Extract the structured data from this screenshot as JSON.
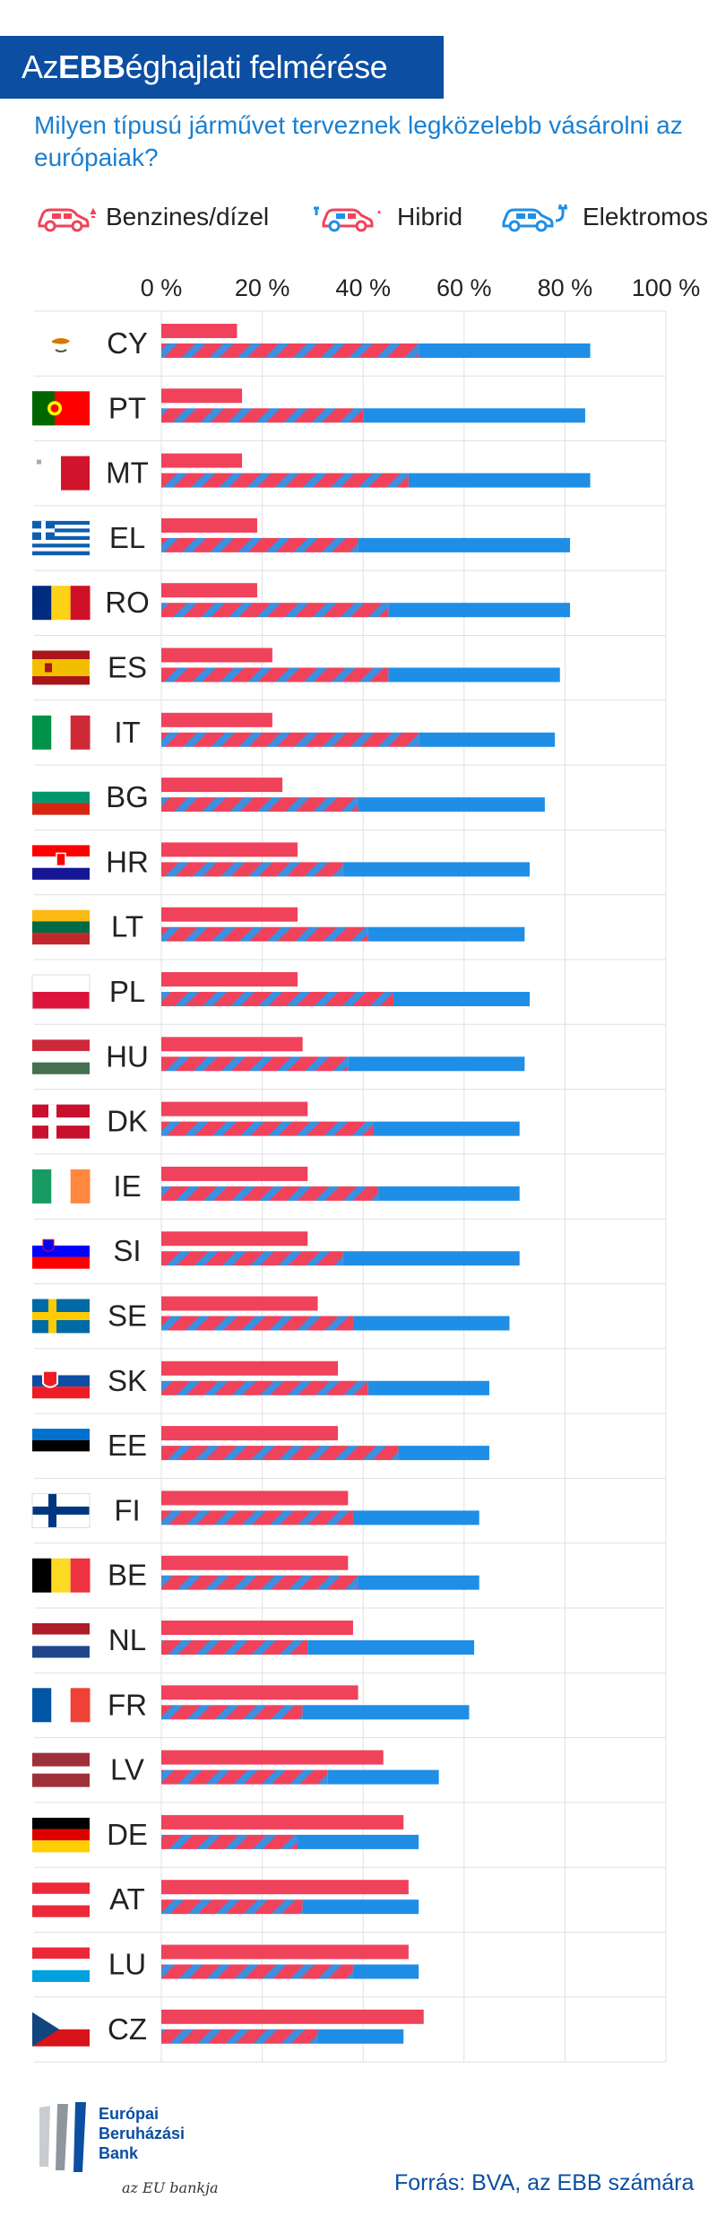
{
  "title": {
    "prefix": "Az ",
    "bold": "EBB",
    "suffix": " éghajlati felmérése"
  },
  "subtitle": "Milyen típusú járművet terveznek legközelebb vásárolni az európaiak?",
  "legend": [
    {
      "label": "Benzines/dízel",
      "icon": "petrol-car-icon",
      "color": "#f0425a"
    },
    {
      "label": "Hibrid",
      "icon": "hybrid-car-icon",
      "color": "#f0425a"
    },
    {
      "label": "Elektromos",
      "icon": "electric-car-icon",
      "color": "#1f8ee6"
    }
  ],
  "colors": {
    "petrol": "#f0425a",
    "hybrid_stripe_red": "#f0425a",
    "hybrid_stripe_blue": "#3d8fe0",
    "electric": "#1f8ee6",
    "grid": "#e0e0e0",
    "title_bg": "#0b4ea2",
    "subtitle": "#1a7fd0"
  },
  "chart_data": {
    "type": "bar",
    "orientation": "horizontal",
    "stacked_second_bar": true,
    "x_ticks": [
      "0 %",
      "20 %",
      "40 %",
      "60 %",
      "80 %",
      "100 %"
    ],
    "xlim": [
      0,
      100
    ],
    "grid": true,
    "categories": [
      "CY",
      "PT",
      "MT",
      "EL",
      "RO",
      "ES",
      "IT",
      "BG",
      "HR",
      "LT",
      "PL",
      "HU",
      "DK",
      "IE",
      "SI",
      "SE",
      "SK",
      "EE",
      "FI",
      "BE",
      "NL",
      "FR",
      "LV",
      "DE",
      "AT",
      "LU",
      "CZ"
    ],
    "flags": [
      "cy",
      "pt",
      "mt",
      "el",
      "ro",
      "es",
      "it",
      "bg",
      "hr",
      "lt",
      "pl",
      "hu",
      "dk",
      "ie",
      "si",
      "se",
      "sk",
      "ee",
      "fi",
      "be",
      "nl",
      "fr",
      "lv",
      "de",
      "at",
      "lu",
      "cz"
    ],
    "series": [
      {
        "name": "Benzines/dízel",
        "values": [
          15,
          16,
          16,
          19,
          19,
          22,
          22,
          24,
          27,
          27,
          27,
          28,
          29,
          29,
          29,
          31,
          35,
          35,
          37,
          37,
          38,
          39,
          44,
          48,
          49,
          49,
          52
        ]
      },
      {
        "name": "Hibrid",
        "values": [
          51,
          40,
          49,
          39,
          45,
          45,
          51,
          39,
          36,
          41,
          46,
          37,
          42,
          43,
          36,
          38,
          41,
          47,
          38,
          39,
          29,
          28,
          33,
          27,
          28,
          38,
          31
        ]
      },
      {
        "name": "Elektromos",
        "values": [
          34,
          44,
          36,
          42,
          36,
          34,
          27,
          37,
          37,
          31,
          27,
          35,
          29,
          28,
          35,
          31,
          24,
          18,
          25,
          24,
          33,
          33,
          22,
          24,
          23,
          13,
          17
        ]
      }
    ]
  },
  "footer": {
    "logo_lines": [
      "Európai",
      "Beruházási",
      "Bank"
    ],
    "logo_tagline": "az EU bankja",
    "source": "Forrás: BVA, az EBB számára"
  }
}
